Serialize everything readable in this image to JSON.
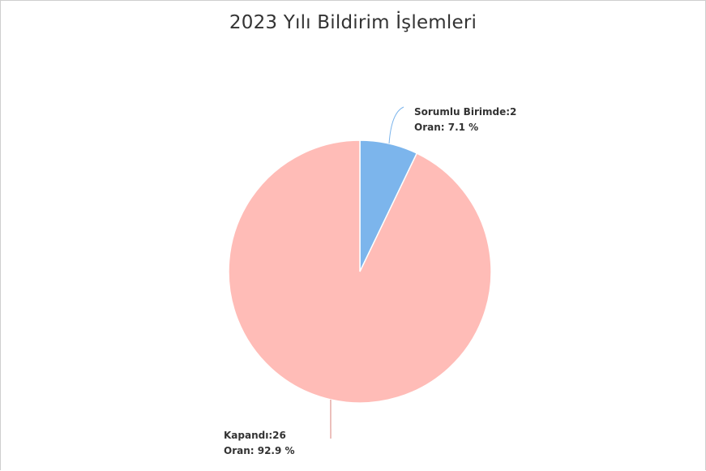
{
  "chart_data": {
    "type": "pie",
    "title": "2023 Yılı Bildirim İşlemleri",
    "slices": [
      {
        "name": "Sorumlu Birimde",
        "value": 2,
        "percent": 7.1,
        "color": "#7cb5ec",
        "label_line1": "Sorumlu Birimde:2",
        "label_line2": "Oran: 7.1 %"
      },
      {
        "name": "Kapandı",
        "value": 26,
        "percent": 92.9,
        "color": "#ffbcb7",
        "label_line1": "Kapandı:26",
        "label_line2": "Oran: 92.9 %"
      }
    ],
    "legend": "none"
  }
}
